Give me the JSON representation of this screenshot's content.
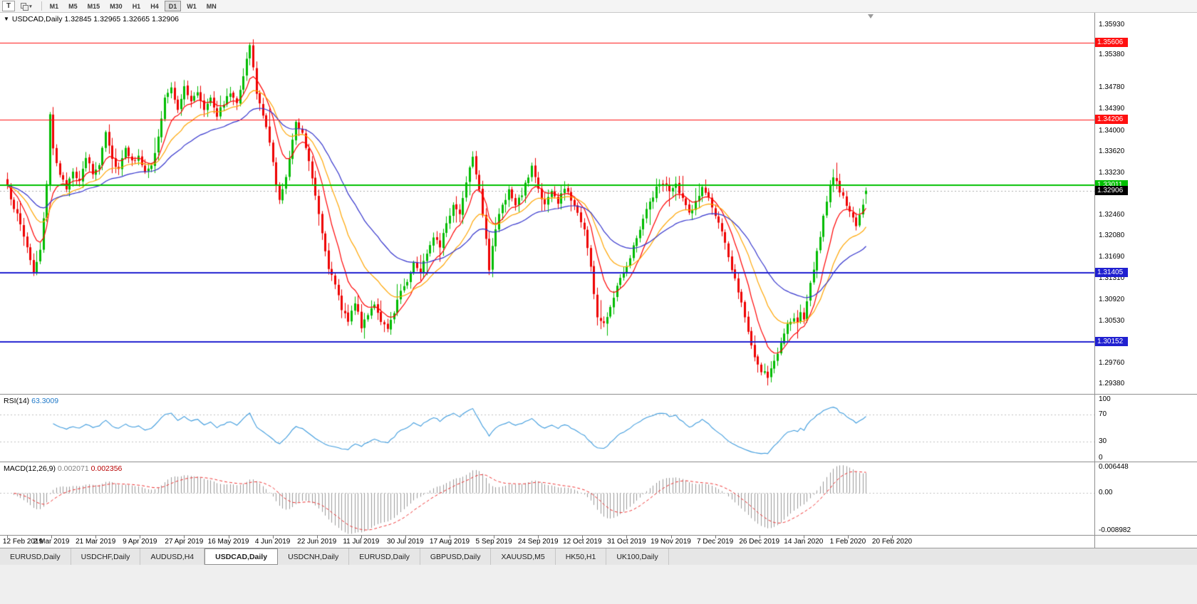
{
  "colors": {
    "bull": "#00bb00",
    "bear": "#ee0000",
    "rsi_line": "#3e9bdd",
    "macd_hist": "#9a9a9a",
    "macd_signal": "#ee3030",
    "current_line": "#aaaaaa",
    "chart_bg": "#ffffff"
  },
  "toolbar": {
    "text_tool_label": "T",
    "caret_icon": "▾",
    "timeframes": [
      "M1",
      "M5",
      "M15",
      "M30",
      "H1",
      "H4",
      "D1",
      "W1",
      "MN"
    ],
    "active_timeframe": "D1"
  },
  "chart": {
    "menu_icon": "▼",
    "title": "USDCAD,Daily",
    "ohlc_text": "1.32845 1.32965 1.32665 1.32906",
    "scale": {
      "max": 1.3615,
      "min": 1.292
    },
    "levels": [
      {
        "label": "1.35606",
        "value": 1.35606,
        "color": "#ff1010",
        "width": 1
      },
      {
        "label": "1.34206",
        "value": 1.34206,
        "color": "#ff1010",
        "width": 1
      },
      {
        "label": "1.33011",
        "value": 1.33011,
        "color": "#00c000",
        "width": 2
      },
      {
        "label": "1.31405",
        "value": 1.31405,
        "color": "#2020d0",
        "width": 2
      },
      {
        "label": "1.30152",
        "value": 1.30152,
        "color": "#2020d0",
        "width": 2
      }
    ],
    "current_price": {
      "label": "1.32906",
      "value": 1.32906,
      "bg": "#000000"
    }
  },
  "rsi": {
    "label": "RSI(14)",
    "value": "63.3009",
    "axis_labels": [
      "100",
      "70",
      "30",
      "0"
    ],
    "axis_values": [
      100,
      70,
      30,
      0
    ],
    "level_lines": [
      70,
      30
    ]
  },
  "macd": {
    "label": "MACD(12,26,9)",
    "value_main": "0.002071",
    "value_signal": "0.002356",
    "axis_labels": [
      "0.006448",
      "0.00",
      "-0.008982"
    ],
    "scale": {
      "max": 0.006448,
      "min": -0.008982
    }
  },
  "tabs": {
    "items": [
      {
        "label": "EURUSD,Daily",
        "active": false
      },
      {
        "label": "USDCHF,Daily",
        "active": false
      },
      {
        "label": "AUDUSD,H4",
        "active": false
      },
      {
        "label": "USDCAD,Daily",
        "active": true
      },
      {
        "label": "USDCNH,Daily",
        "active": false
      },
      {
        "label": "EURUSD,Daily",
        "active": false
      },
      {
        "label": "GBPUSD,Daily",
        "active": false
      },
      {
        "label": "XAUUSD,M5",
        "active": false
      },
      {
        "label": "HK50,H1",
        "active": false
      },
      {
        "label": "UK100,Daily",
        "active": false
      }
    ]
  },
  "chart_data": {
    "type": "candlestick",
    "symbol": "USDCAD",
    "timeframe": "Daily",
    "last_ohlc": {
      "open": 1.32845,
      "high": 1.32965,
      "low": 1.32665,
      "close": 1.32906
    },
    "price_range_visible": [
      1.2938,
      1.3593
    ],
    "y_tick_labels": [
      "1.35930",
      "1.35380",
      "1.34780",
      "1.34390",
      "1.34000",
      "1.33620",
      "1.33230",
      "1.32460",
      "1.32080",
      "1.31690",
      "1.31310",
      "1.30920",
      "1.30530",
      "1.29760",
      "1.29380"
    ],
    "x_tick_labels": [
      "12 Feb 2019",
      "2 Mar 2019",
      "21 Mar 2019",
      "9 Apr 2019",
      "27 Apr 2019",
      "16 May 2019",
      "4 Jun 2019",
      "22 Jun 2019",
      "11 Jul 2019",
      "30 Jul 2019",
      "17 Aug 2019",
      "5 Sep 2019",
      "24 Sep 2019",
      "12 Oct 2019",
      "31 Oct 2019",
      "19 Nov 2019",
      "7 Dec 2019",
      "26 Dec 2019",
      "14 Jan 2020",
      "1 Feb 2020",
      "20 Feb 2020"
    ],
    "horizontal_levels": [
      1.35606,
      1.34206,
      1.33011,
      1.31405,
      1.30152
    ],
    "close_path": [
      [
        0,
        1.3295
      ],
      [
        2,
        1.3262
      ],
      [
        4,
        1.3228
      ],
      [
        6,
        1.3188
      ],
      [
        8,
        1.3142
      ],
      [
        10,
        1.3178
      ],
      [
        12,
        1.3298
      ],
      [
        13,
        1.3432
      ],
      [
        14,
        1.3372
      ],
      [
        16,
        1.3316
      ],
      [
        18,
        1.3296
      ],
      [
        20,
        1.333
      ],
      [
        22,
        1.3304
      ],
      [
        24,
        1.3352
      ],
      [
        26,
        1.3322
      ],
      [
        28,
        1.3338
      ],
      [
        30,
        1.3402
      ],
      [
        32,
        1.3348
      ],
      [
        34,
        1.333
      ],
      [
        36,
        1.3372
      ],
      [
        38,
        1.3342
      ],
      [
        40,
        1.3358
      ],
      [
        42,
        1.3322
      ],
      [
        44,
        1.3334
      ],
      [
        46,
        1.3388
      ],
      [
        48,
        1.3458
      ],
      [
        50,
        1.3476
      ],
      [
        52,
        1.3442
      ],
      [
        54,
        1.3478
      ],
      [
        56,
        1.3452
      ],
      [
        58,
        1.3472
      ],
      [
        60,
        1.344
      ],
      [
        62,
        1.3464
      ],
      [
        64,
        1.3428
      ],
      [
        66,
        1.3452
      ],
      [
        68,
        1.3468
      ],
      [
        70,
        1.3455
      ],
      [
        72,
        1.3502
      ],
      [
        74,
        1.3556
      ],
      [
        76,
        1.3468
      ],
      [
        78,
        1.343
      ],
      [
        80,
        1.3376
      ],
      [
        82,
        1.3306
      ],
      [
        83,
        1.3272
      ],
      [
        85,
        1.3312
      ],
      [
        87,
        1.3388
      ],
      [
        88,
        1.3418
      ],
      [
        90,
        1.3396
      ],
      [
        92,
        1.3346
      ],
      [
        94,
        1.3286
      ],
      [
        96,
        1.3214
      ],
      [
        98,
        1.3152
      ],
      [
        100,
        1.3116
      ],
      [
        102,
        1.3076
      ],
      [
        104,
        1.3056
      ],
      [
        106,
        1.3088
      ],
      [
        108,
        1.3042
      ],
      [
        110,
        1.3068
      ],
      [
        112,
        1.3086
      ],
      [
        114,
        1.3048
      ],
      [
        116,
        1.3036
      ],
      [
        118,
        1.3072
      ],
      [
        120,
        1.3108
      ],
      [
        122,
        1.3128
      ],
      [
        124,
        1.3158
      ],
      [
        126,
        1.3142
      ],
      [
        128,
        1.3178
      ],
      [
        130,
        1.321
      ],
      [
        132,
        1.3192
      ],
      [
        134,
        1.3228
      ],
      [
        136,
        1.3266
      ],
      [
        138,
        1.3248
      ],
      [
        140,
        1.331
      ],
      [
        142,
        1.3356
      ],
      [
        144,
        1.3294
      ],
      [
        146,
        1.3204
      ],
      [
        147,
        1.3148
      ],
      [
        149,
        1.3222
      ],
      [
        151,
        1.3266
      ],
      [
        153,
        1.329
      ],
      [
        155,
        1.3262
      ],
      [
        157,
        1.3286
      ],
      [
        159,
        1.3316
      ],
      [
        160,
        1.3336
      ],
      [
        162,
        1.3294
      ],
      [
        164,
        1.3264
      ],
      [
        166,
        1.329
      ],
      [
        168,
        1.3268
      ],
      [
        170,
        1.3296
      ],
      [
        172,
        1.3276
      ],
      [
        174,
        1.325
      ],
      [
        176,
        1.3222
      ],
      [
        178,
        1.315
      ],
      [
        180,
        1.306
      ],
      [
        182,
        1.3046
      ],
      [
        184,
        1.308
      ],
      [
        186,
        1.312
      ],
      [
        188,
        1.3144
      ],
      [
        190,
        1.317
      ],
      [
        192,
        1.3206
      ],
      [
        194,
        1.324
      ],
      [
        196,
        1.327
      ],
      [
        198,
        1.3294
      ],
      [
        200,
        1.3308
      ],
      [
        202,
        1.3288
      ],
      [
        204,
        1.33
      ],
      [
        206,
        1.3274
      ],
      [
        208,
        1.325
      ],
      [
        210,
        1.327
      ],
      [
        212,
        1.3296
      ],
      [
        214,
        1.3276
      ],
      [
        216,
        1.3246
      ],
      [
        218,
        1.3212
      ],
      [
        220,
        1.317
      ],
      [
        222,
        1.313
      ],
      [
        224,
        1.309
      ],
      [
        226,
        1.303
      ],
      [
        228,
        1.2982
      ],
      [
        230,
        1.2962
      ],
      [
        232,
        1.2952
      ],
      [
        234,
        1.2978
      ],
      [
        236,
        1.3012
      ],
      [
        238,
        1.3046
      ],
      [
        240,
        1.3056
      ],
      [
        241,
        1.3046
      ],
      [
        242,
        1.3072
      ],
      [
        243,
        1.3058
      ],
      [
        244,
        1.3092
      ],
      [
        245,
        1.312
      ],
      [
        246,
        1.315
      ],
      [
        247,
        1.318
      ],
      [
        248,
        1.321
      ],
      [
        249,
        1.324
      ],
      [
        250,
        1.3268
      ],
      [
        251,
        1.3296
      ],
      [
        252,
        1.3318
      ],
      [
        254,
        1.3292
      ],
      [
        256,
        1.3262
      ],
      [
        258,
        1.3238
      ],
      [
        259,
        1.3224
      ],
      [
        260,
        1.3248
      ],
      [
        261,
        1.3268
      ],
      [
        262,
        1.32906
      ]
    ],
    "moving_averages": [
      {
        "name": "fast",
        "type": "ema",
        "period": 9,
        "color": "#ff0000"
      },
      {
        "name": "medium",
        "type": "ema",
        "period": 20,
        "color": "#ffa500"
      },
      {
        "name": "slow",
        "type": "ema",
        "period": 40,
        "color": "#3333cc"
      }
    ],
    "indicators": [
      {
        "name": "RSI",
        "period": 14,
        "current": 63.3009,
        "range": [
          0,
          100
        ],
        "levels": [
          30,
          70
        ]
      },
      {
        "name": "MACD",
        "fast": 12,
        "slow": 26,
        "signal": 9,
        "current_main": 0.002071,
        "current_signal": 0.002356,
        "range": [
          -0.008982,
          0.006448
        ]
      }
    ]
  }
}
